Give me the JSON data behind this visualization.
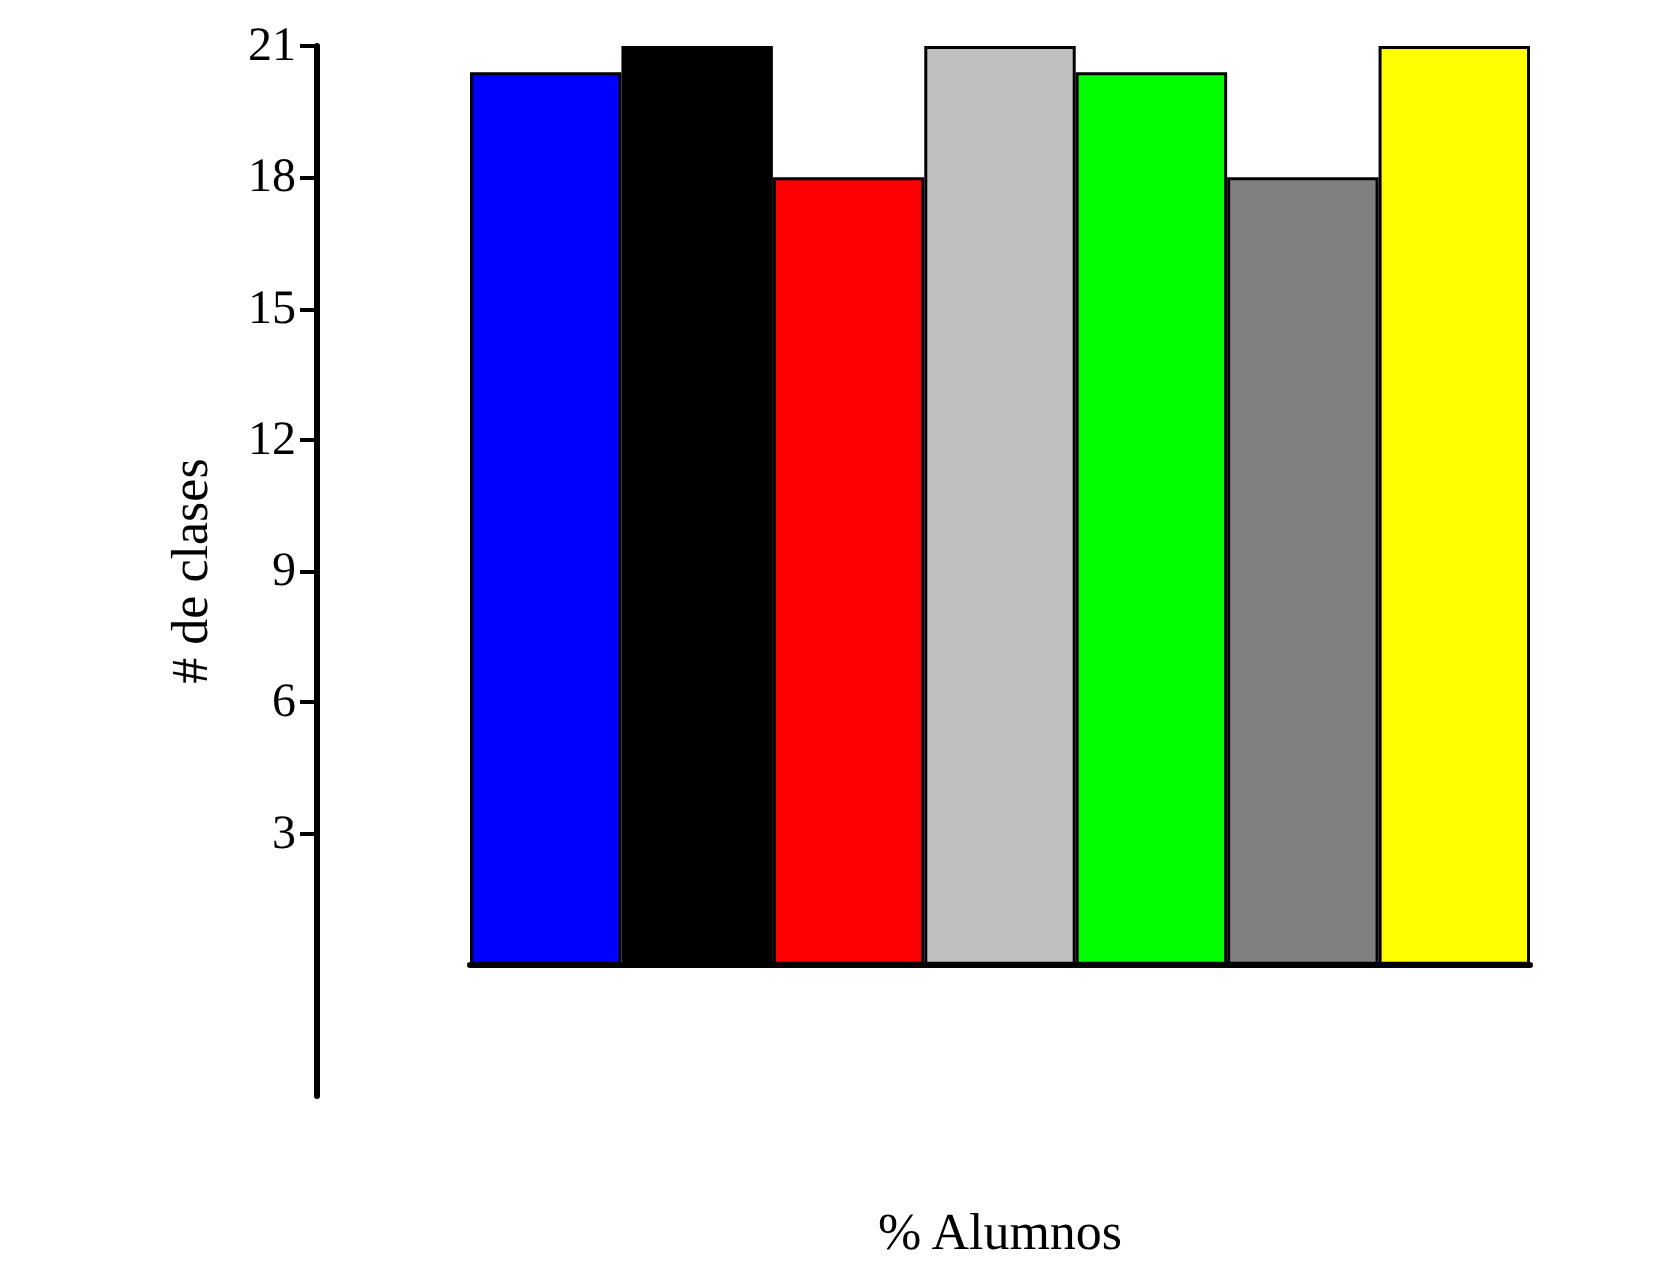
{
  "chart_data": {
    "type": "bar",
    "xlabel": "% Alumnos",
    "ylabel": "# de clases",
    "categories": [
      null,
      null,
      null,
      null,
      null,
      null,
      null
    ],
    "values": [
      20.4,
      21,
      18,
      21,
      20.4,
      18,
      21
    ],
    "colors": [
      "#0000ff",
      "#000000",
      "#ff0000",
      "#bfbfbf",
      "#00ff00",
      "#808080",
      "#ffff00"
    ],
    "ylim": [
      -3,
      21
    ],
    "yticks": [
      3,
      6,
      9,
      12,
      15,
      18,
      21
    ]
  }
}
